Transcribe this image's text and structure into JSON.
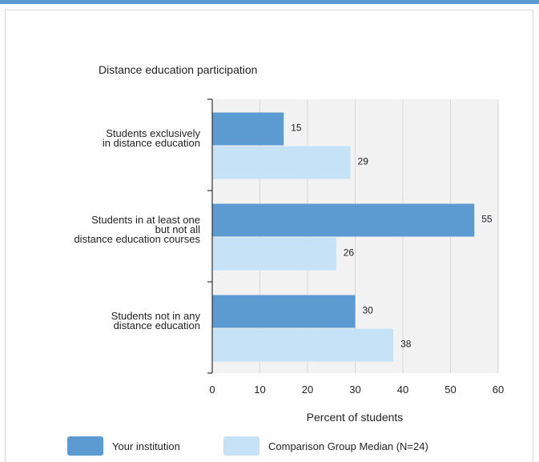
{
  "chart_data": {
    "type": "bar",
    "orientation": "horizontal",
    "title": "Distance education participation",
    "xlabel": "Percent of students",
    "ylabel": "",
    "xlim": [
      0,
      60
    ],
    "xticks": [
      0,
      10,
      20,
      30,
      40,
      50,
      60
    ],
    "grid": true,
    "legend_position": "bottom",
    "categories": [
      [
        "Students exclusively",
        "in distance education"
      ],
      [
        "Students in at least one",
        "but not all",
        "distance education courses"
      ],
      [
        "Students not in any",
        "distance education"
      ]
    ],
    "series": [
      {
        "name": "Your institution",
        "values": [
          15,
          55,
          30
        ],
        "color": "#5b9bd1"
      },
      {
        "name": "Comparison Group Median (N=24)",
        "values": [
          29,
          26,
          38
        ],
        "color": "#c6e2f7"
      }
    ]
  }
}
